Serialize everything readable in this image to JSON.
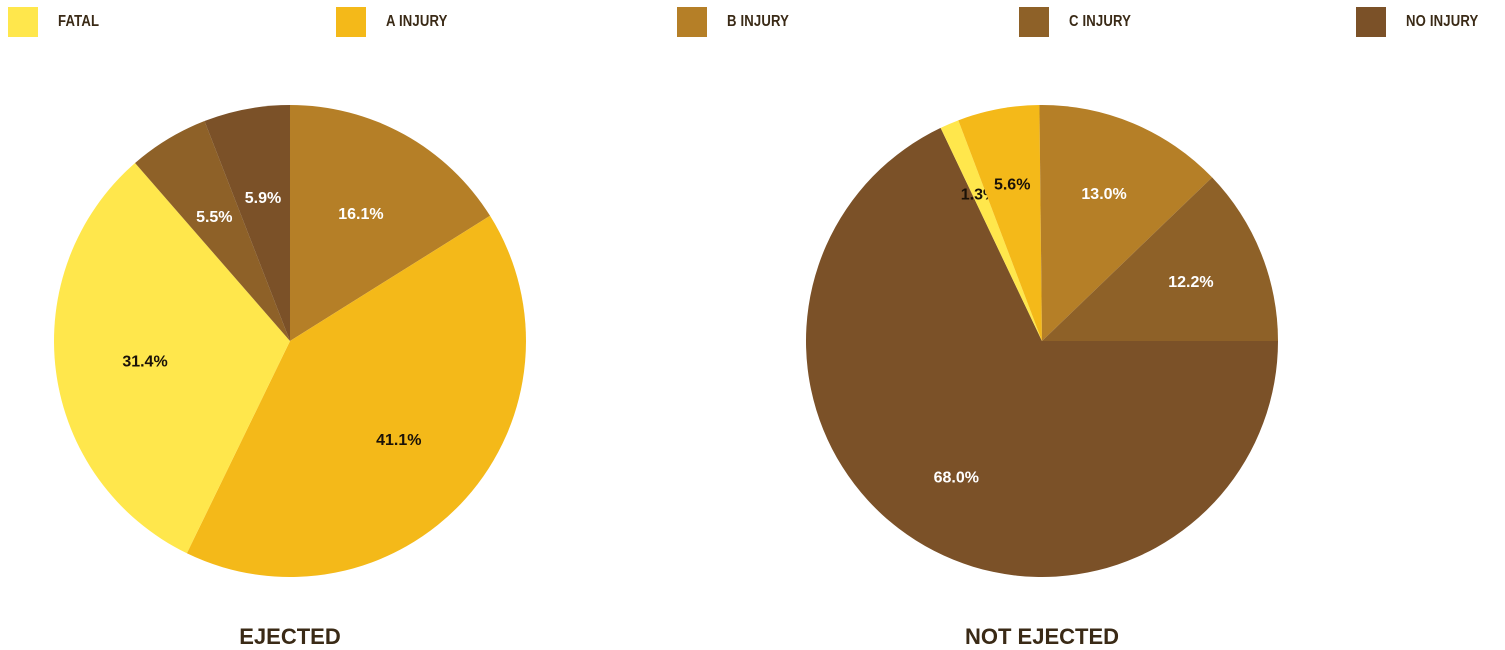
{
  "legend": [
    {
      "label": "FATAL",
      "color": "#FFE74C"
    },
    {
      "label": "A INJURY",
      "color": "#F4B919"
    },
    {
      "label": "B INJURY",
      "color": "#B57F27"
    },
    {
      "label": "C INJURY",
      "color": "#8E6128"
    },
    {
      "label": "NO INJURY",
      "color": "#7B5128"
    }
  ],
  "chart_data": [
    {
      "type": "pie",
      "title": "EJECTED",
      "start_category": "B INJURY",
      "direction": "clockwise",
      "slices": [
        {
          "category": "B INJURY",
          "value": 16.1,
          "label": "16.1%"
        },
        {
          "category": "A INJURY",
          "value": 41.1,
          "label": "41.1%"
        },
        {
          "category": "FATAL",
          "value": 31.4,
          "label": "31.4%"
        },
        {
          "category": "C INJURY",
          "value": 5.5,
          "label": "5.5%"
        },
        {
          "category": "NO INJURY",
          "value": 5.9,
          "label": "5.9%"
        }
      ]
    },
    {
      "type": "pie",
      "title": "NOT EJECTED",
      "start_category": "NO INJURY",
      "direction": "clockwise",
      "slices": [
        {
          "category": "NO INJURY",
          "value": 68.0,
          "label": "68.0%"
        },
        {
          "category": "FATAL",
          "value": 1.3,
          "label": "1.3%"
        },
        {
          "category": "A INJURY",
          "value": 5.6,
          "label": "5.6%"
        },
        {
          "category": "B INJURY",
          "value": 13.0,
          "label": "13.0%"
        },
        {
          "category": "C INJURY",
          "value": 12.2,
          "label": "12.2%"
        }
      ]
    }
  ]
}
